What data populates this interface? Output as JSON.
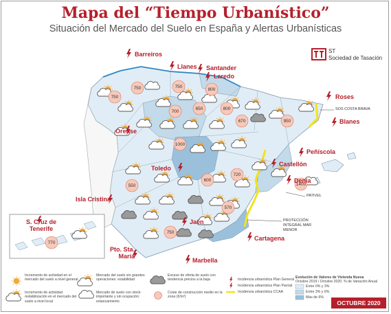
{
  "title": "Mapa del “Tiempo Urbanístico”",
  "subtitle": "Situación del Mercado del Suelo en España y Alertas Urbanísticas",
  "logo": {
    "mark": "ST",
    "name": "Sociedad de Tasación"
  },
  "places": {
    "barreiros": "Barreiros",
    "llanes": "Llanes",
    "santander": "Santander",
    "laredo": "Laredo",
    "roses": "Roses",
    "blanes": "Blanes",
    "orense": "Orense",
    "peniscola": "Peñíscola",
    "castellon": "Castellón",
    "toledo": "Toledo",
    "denia": "Denia",
    "isla_cristina": "Isla Cristina",
    "jaen": "Jaén",
    "pto_sta_maria": "Pto. Sta. María",
    "marbella": "Marbella",
    "cartagena": "Cartagena",
    "tenerife": "S. Cruz de Tenerife"
  },
  "notes": {
    "sos_costa_brava": "SOS COSTA BRAVA",
    "pativel": "PATIVEL",
    "proteccion": "PROTECCIÓN INTEGRAL MAR MENOR"
  },
  "costs": [
    {
      "value": "750",
      "icon": "cost-circle"
    },
    {
      "value": "750",
      "icon": "cost-circle"
    },
    {
      "value": "750",
      "icon": "cost-circle"
    },
    {
      "value": "800",
      "icon": "cost-circle"
    },
    {
      "value": "800",
      "icon": "cost-circle"
    },
    {
      "value": "700",
      "icon": "cost-circle"
    },
    {
      "value": "650",
      "icon": "cost-circle"
    },
    {
      "value": "670",
      "icon": "cost-circle"
    },
    {
      "value": "950",
      "icon": "cost-circle"
    },
    {
      "value": "1000",
      "icon": "cost-circle"
    },
    {
      "value": "600",
      "icon": "cost-circle"
    },
    {
      "value": "720",
      "icon": "cost-circle"
    },
    {
      "value": "550",
      "icon": "cost-circle"
    },
    {
      "value": "1400",
      "icon": "cost-circle"
    },
    {
      "value": "570",
      "icon": "cost-circle"
    },
    {
      "value": "750",
      "icon": "cost-circle"
    },
    {
      "value": "770",
      "icon": "cost-circle"
    }
  ],
  "legend": {
    "sun_general": "Incremento de actividad en el mercado del suelo a nivel general",
    "sun_local": "Incremento de actividad /estabilización en el mercado del suelo a nivel local",
    "cloud_stable": "Mercado del suelo sin grandes operaciones: estabilidad",
    "cloud_stock": "Mercado de suelo con stock importante y sin ocupación: estancamiento",
    "storm": "Exceso de oferta de suelo con tendencia precios a la baja",
    "cost": "Coste de construcción medio en la zona (€/m²)",
    "alert_general": "Incidencia urbanística Plan General",
    "alert_partial": "Incidencia urbanística Plan Parcial",
    "alert_ccaa": "Incidencia urbanística CCAA",
    "evolution_title": "Evolución de Valores de Vivienda Nueva",
    "evolution_sub": "Octubre 2019 / Octubre 2020. % de Variación Anual",
    "range1": "Entre 0% y 3%",
    "range2": "Entre 3% y 6%",
    "range3": "Más de 6%"
  },
  "date": "OCTUBRE 2020",
  "colors": {
    "accent": "#b5202b",
    "region_light": "#e1edf6",
    "region_mid": "#c2daea",
    "region_dark": "#9ac0dc",
    "ccaa_line": "#f2e31a"
  }
}
